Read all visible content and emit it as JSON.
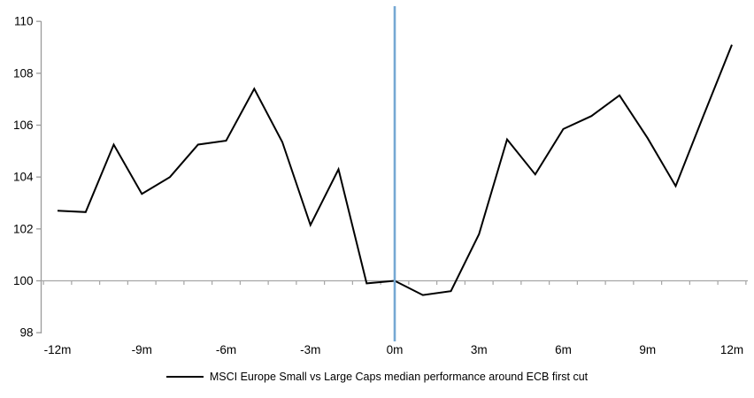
{
  "chart_data": {
    "type": "line",
    "title": "",
    "xlabel": "",
    "ylabel": "",
    "x_unit": "months relative to ECB first cut",
    "x": [
      -12,
      -11,
      -10,
      -9,
      -8,
      -7,
      -6,
      -5,
      -4,
      -3,
      -2,
      -1,
      0,
      1,
      2,
      3,
      4,
      5,
      6,
      7,
      8,
      9,
      10,
      11,
      12
    ],
    "series": [
      {
        "name": "MSCI Europe Small vs Large Caps median performance around ECB first cut",
        "color": "#000000",
        "values": [
          102.7,
          102.65,
          105.25,
          103.35,
          104.0,
          105.25,
          105.4,
          107.4,
          105.35,
          102.15,
          104.3,
          99.9,
          100.0,
          99.45,
          99.6,
          101.8,
          105.45,
          104.1,
          105.85,
          106.35,
          107.15,
          105.5,
          103.65,
          106.4,
          109.1
        ]
      }
    ],
    "x_ticks": [
      {
        "value": -12,
        "label": "-12m"
      },
      {
        "value": -9,
        "label": "-9m"
      },
      {
        "value": -6,
        "label": "-6m"
      },
      {
        "value": -3,
        "label": "-3m"
      },
      {
        "value": 0,
        "label": "0m"
      },
      {
        "value": 3,
        "label": "3m"
      },
      {
        "value": 6,
        "label": "6m"
      },
      {
        "value": 9,
        "label": "9m"
      },
      {
        "value": 12,
        "label": "12m"
      }
    ],
    "y_ticks": [
      98,
      100,
      102,
      104,
      106,
      108,
      110
    ],
    "ylim": [
      98,
      110
    ],
    "xlim": [
      -12.5,
      12.5
    ],
    "grid": "single horizontal baseline at 100 with category tick marks",
    "baseline_y": 100,
    "event_line": {
      "x": 0,
      "color": "#75A8D3"
    },
    "axis_color": "#9B9B9B",
    "gridline_color": "#A6A6A6",
    "text_color": "#000000",
    "legend_position": "bottom-center"
  }
}
